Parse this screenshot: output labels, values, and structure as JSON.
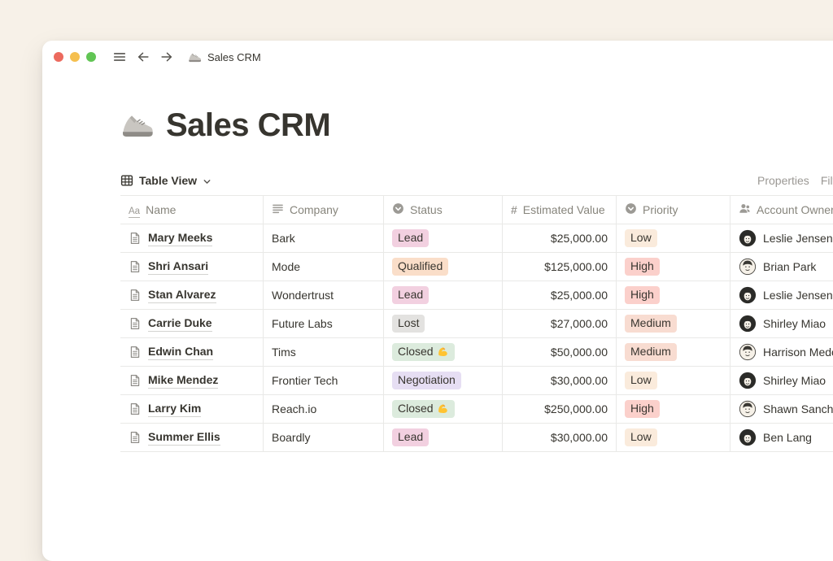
{
  "topbar": {
    "title": "Sales CRM",
    "controls": [
      "close",
      "minimize",
      "zoom"
    ]
  },
  "page": {
    "title": "Sales CRM",
    "emoji": "running-shoe"
  },
  "toolbar": {
    "view_label": "Table View",
    "properties_label": "Properties",
    "filter_label": "Filter"
  },
  "colors": {
    "background": "#F7F1E8",
    "window": "#FFFFFF",
    "traffic_red": "#EC6A5E",
    "traffic_yellow": "#F5BF4F",
    "traffic_green": "#61C554",
    "border": "#E9E9E7",
    "text": "#37352F",
    "muted": "#87857C"
  },
  "table": {
    "columns": [
      {
        "key": "name",
        "label": "Name",
        "icon": "title-icon"
      },
      {
        "key": "company",
        "label": "Company",
        "icon": "text-icon"
      },
      {
        "key": "status",
        "label": "Status",
        "icon": "select-icon"
      },
      {
        "key": "value",
        "label": "Estimated Value",
        "icon": "number-icon"
      },
      {
        "key": "priority",
        "label": "Priority",
        "icon": "select-icon"
      },
      {
        "key": "owner",
        "label": "Account Owner",
        "icon": "person-icon"
      }
    ],
    "badge_colors": {
      "pink": "#F2D0E0",
      "orange": "#FADEC9",
      "gray": "#E3E2E0",
      "green": "#DCEBDD",
      "purple": "#E6DEF3",
      "yellow": "#FAEBDC",
      "red": "#FBD0CB",
      "salmon": "#F8DCD1"
    },
    "rows": [
      {
        "name": "Mary Meeks",
        "company": "Bark",
        "status": {
          "label": "Lead",
          "color": "pink"
        },
        "value": "$25,000.00",
        "priority": {
          "label": "Low",
          "color": "yellow"
        },
        "owner": {
          "name": "Leslie Jensen",
          "avatar": "dark"
        }
      },
      {
        "name": "Shri Ansari",
        "company": "Mode",
        "status": {
          "label": "Qualified",
          "color": "orange"
        },
        "value": "$125,000.00",
        "priority": {
          "label": "High",
          "color": "red"
        },
        "owner": {
          "name": "Brian Park",
          "avatar": "light"
        }
      },
      {
        "name": "Stan Alvarez",
        "company": "Wondertrust",
        "status": {
          "label": "Lead",
          "color": "pink"
        },
        "value": "$25,000.00",
        "priority": {
          "label": "High",
          "color": "red"
        },
        "owner": {
          "name": "Leslie Jensen",
          "avatar": "dark"
        }
      },
      {
        "name": "Carrie Duke",
        "company": "Future Labs",
        "status": {
          "label": "Lost",
          "color": "gray"
        },
        "value": "$27,000.00",
        "priority": {
          "label": "Medium",
          "color": "salmon"
        },
        "owner": {
          "name": "Shirley Miao",
          "avatar": "dark"
        }
      },
      {
        "name": "Edwin Chan",
        "company": "Tims",
        "status": {
          "label": "Closed",
          "color": "green",
          "emoji": "💪"
        },
        "value": "$50,000.00",
        "priority": {
          "label": "Medium",
          "color": "salmon"
        },
        "owner": {
          "name": "Harrison Medo",
          "avatar": "light"
        }
      },
      {
        "name": "Mike Mendez",
        "company": "Frontier Tech",
        "status": {
          "label": "Negotiation",
          "color": "purple"
        },
        "value": "$30,000.00",
        "priority": {
          "label": "Low",
          "color": "yellow"
        },
        "owner": {
          "name": "Shirley Miao",
          "avatar": "dark"
        }
      },
      {
        "name": "Larry Kim",
        "company": "Reach.io",
        "status": {
          "label": "Closed",
          "color": "green",
          "emoji": "💪"
        },
        "value": "$250,000.00",
        "priority": {
          "label": "High",
          "color": "red"
        },
        "owner": {
          "name": "Shawn Sanche",
          "avatar": "light"
        }
      },
      {
        "name": "Summer Ellis",
        "company": "Boardly",
        "status": {
          "label": "Lead",
          "color": "pink"
        },
        "value": "$30,000.00",
        "priority": {
          "label": "Low",
          "color": "yellow"
        },
        "owner": {
          "name": "Ben Lang",
          "avatar": "dark"
        }
      }
    ]
  }
}
